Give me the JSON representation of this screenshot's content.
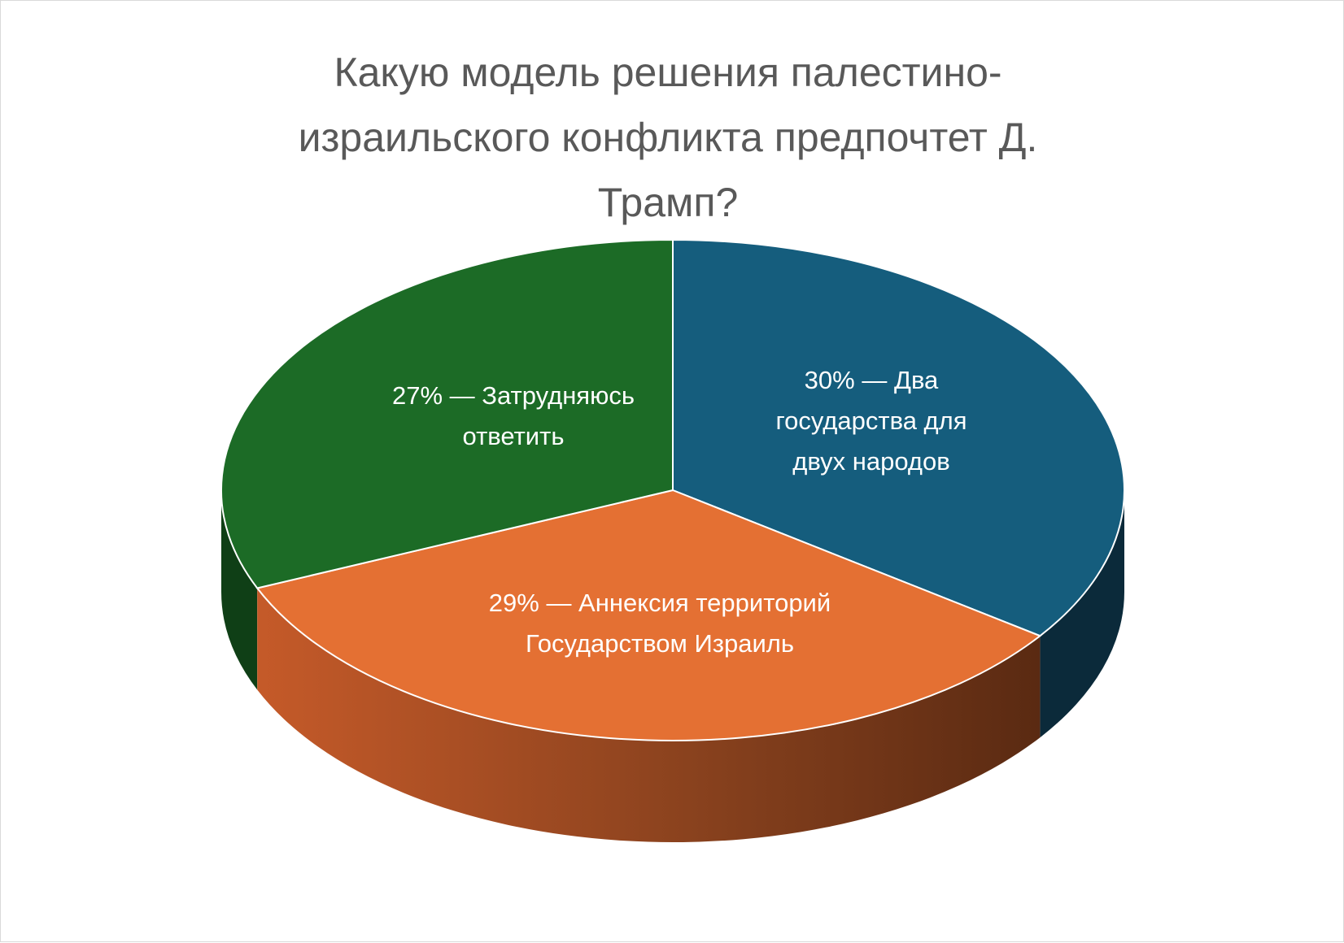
{
  "chart_data": {
    "type": "pie",
    "title": "Какую модель решения палестино-\nизраильского конфликта  предпочтет  Д.\nТрамп?",
    "slices": [
      {
        "label": "Два государства для двух народов",
        "value": 30,
        "display": "30% — Два\nгосударства для\nдвух народов",
        "color": "#155d7d",
        "side_color": "#0b2a3a"
      },
      {
        "label": "Аннексия территорий Государством Израиль",
        "value": 29,
        "display": "29% — Аннексия территорий\nГосударством Израиль",
        "color": "#e47033",
        "side_color": "#bd5828"
      },
      {
        "label": "Затрудняюсь ответить",
        "value": 27,
        "display": "27% — Затрудняюсь\nответить",
        "color": "#1c6b26",
        "side_color": "#0f3f16"
      }
    ],
    "legend": "none",
    "style": "3d-pie"
  }
}
